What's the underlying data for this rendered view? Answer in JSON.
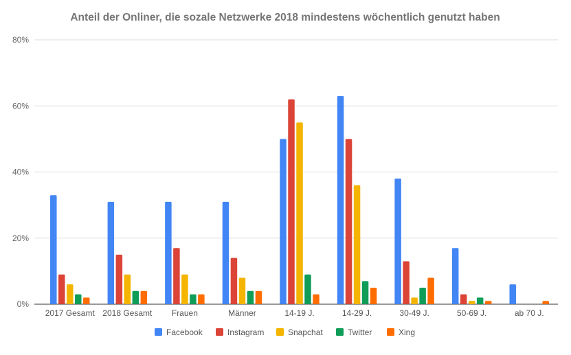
{
  "chart_data": {
    "type": "bar",
    "title": "Anteil der Onliner, die sozale Netzwerke 2018 mindestens wöchentlich genutzt haben",
    "xlabel": "",
    "ylabel": "",
    "ylim": [
      0,
      80
    ],
    "yticks": [
      "0%",
      "20%",
      "40%",
      "60%",
      "80%"
    ],
    "ytick_values": [
      0,
      20,
      40,
      60,
      80
    ],
    "grid": true,
    "legend_position": "bottom",
    "categories": [
      "2017 Gesamt",
      "2018 Gesamt",
      "Frauen",
      "Männer",
      "14-19 J.",
      "14-29 J.",
      "30-49 J.",
      "50-69 J.",
      "ab 70 J."
    ],
    "series": [
      {
        "name": "Facebook",
        "color": "#4285f4",
        "values": [
          33,
          31,
          31,
          31,
          50,
          63,
          38,
          17,
          6
        ]
      },
      {
        "name": "Instagram",
        "color": "#db4437",
        "values": [
          9,
          15,
          17,
          14,
          62,
          50,
          13,
          3,
          0
        ]
      },
      {
        "name": "Snapchat",
        "color": "#f4b400",
        "values": [
          6,
          9,
          9,
          8,
          55,
          36,
          2,
          1,
          0
        ]
      },
      {
        "name": "Twitter",
        "color": "#0f9d58",
        "values": [
          3,
          4,
          3,
          4,
          9,
          7,
          5,
          2,
          0
        ]
      },
      {
        "name": "Xing",
        "color": "#ff6d01",
        "values": [
          2,
          4,
          3,
          4,
          3,
          5,
          8,
          1,
          1
        ]
      }
    ]
  }
}
